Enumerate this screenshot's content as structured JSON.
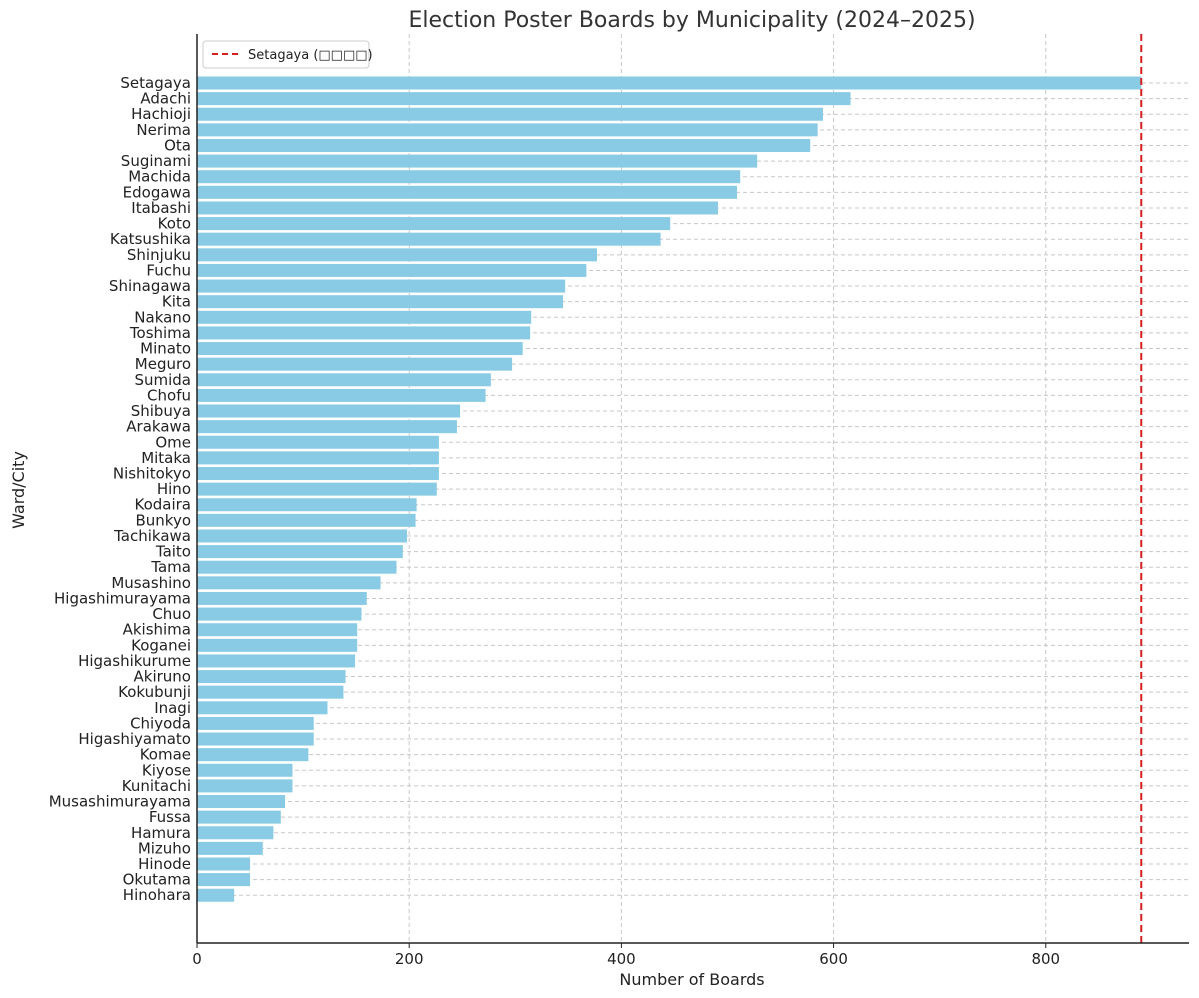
{
  "chart_data": {
    "type": "bar",
    "orientation": "horizontal",
    "title": "Election Poster Boards by Municipality (2024–2025)",
    "xlabel": "Number of Boards",
    "ylabel": "Ward/City",
    "xlim": [
      0,
      935
    ],
    "xticks": [
      0,
      200,
      400,
      600,
      800
    ],
    "grid": true,
    "bar_color": "#89cbe4",
    "categories": [
      "Setagaya",
      "Adachi",
      "Hachioji",
      "Nerima",
      "Ota",
      "Suginami",
      "Machida",
      "Edogawa",
      "Itabashi",
      "Koto",
      "Katsushika",
      "Shinjuku",
      "Fuchu",
      "Shinagawa",
      "Kita",
      "Nakano",
      "Toshima",
      "Minato",
      "Meguro",
      "Sumida",
      "Chofu",
      "Shibuya",
      "Arakawa",
      "Ome",
      "Mitaka",
      "Nishitokyo",
      "Hino",
      "Kodaira",
      "Bunkyo",
      "Tachikawa",
      "Taito",
      "Tama",
      "Musashino",
      "Higashimurayama",
      "Chuo",
      "Akishima",
      "Koganei",
      "Higashikurume",
      "Akiruno",
      "Kokubunji",
      "Inagi",
      "Chiyoda",
      "Higashiyamato",
      "Komae",
      "Kiyose",
      "Kunitachi",
      "Musashimurayama",
      "Fussa",
      "Hamura",
      "Mizuho",
      "Hinode",
      "Okutama",
      "Hinohara"
    ],
    "values": [
      890,
      616,
      590,
      585,
      578,
      528,
      512,
      509,
      491,
      446,
      437,
      377,
      367,
      347,
      345,
      315,
      314,
      307,
      297,
      277,
      272,
      248,
      245,
      228,
      228,
      228,
      226,
      207,
      206,
      198,
      194,
      188,
      173,
      160,
      155,
      151,
      151,
      149,
      140,
      138,
      123,
      110,
      110,
      105,
      90,
      90,
      83,
      79,
      72,
      62,
      50,
      50,
      35
    ],
    "reference_line": {
      "value": 890,
      "label": "Setagaya (□□□□)",
      "color": "#d62020",
      "style": "dashed"
    },
    "legend": {
      "placement": "top-left"
    }
  }
}
